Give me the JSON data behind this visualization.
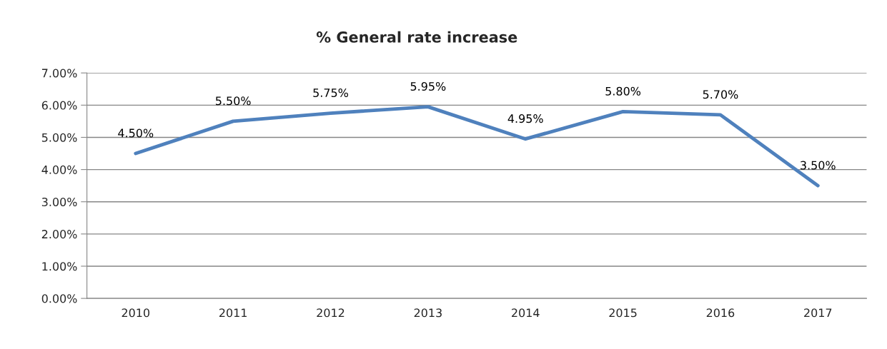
{
  "chart_data": {
    "type": "line",
    "title": "% General rate increase",
    "categories": [
      "2010",
      "2011",
      "2012",
      "2013",
      "2014",
      "2015",
      "2016",
      "2017"
    ],
    "series": [
      {
        "color": "#4f81bd",
        "values": [
          4.5,
          5.5,
          5.75,
          5.95,
          4.95,
          5.8,
          5.7,
          3.5
        ],
        "value_labels": [
          "4.50%",
          "5.50%",
          "5.75%",
          "5.95%",
          "4.95%",
          "5.80%",
          "5.70%",
          "3.50%"
        ]
      }
    ],
    "ylim": [
      0,
      7
    ],
    "yticks": [
      {
        "value": 0,
        "label": "0.00%"
      },
      {
        "value": 1,
        "label": "1.00%"
      },
      {
        "value": 2,
        "label": "2.00%"
      },
      {
        "value": 3,
        "label": "3.00%"
      },
      {
        "value": 4,
        "label": "4.00%"
      },
      {
        "value": 5,
        "label": "5.00%"
      },
      {
        "value": 6,
        "label": "6.00%"
      },
      {
        "value": 7,
        "label": "7.00%"
      }
    ],
    "grid": "y",
    "legend": false,
    "marker": "none",
    "line_style": "solid"
  }
}
